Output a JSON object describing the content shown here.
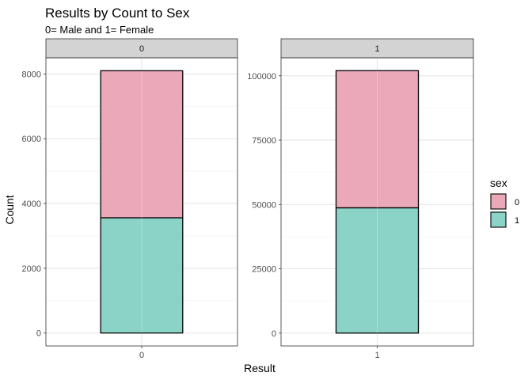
{
  "chart_data": {
    "type": "bar",
    "title": "Results by Count to Sex",
    "subtitle": "0= Male and 1= Female",
    "xlabel": "Result",
    "ylabel": "Count",
    "stacked": true,
    "grid": true,
    "legend": {
      "title": "sex",
      "placement": "right",
      "entries": [
        {
          "label": "0",
          "color": "#eba8b8"
        },
        {
          "label": "1",
          "color": "#8cd3c7"
        }
      ]
    },
    "colors": {
      "sex_0": "#eba8b8",
      "sex_1": "#8cd3c7",
      "strip_bg": "#d3d3d3"
    },
    "panels": [
      {
        "strip": "0",
        "category": "0",
        "ylim": [
          -400,
          8500
        ],
        "yticks": [
          0,
          2000,
          4000,
          6000,
          8000
        ],
        "yticklabels": [
          "0",
          "2000",
          "4000",
          "6000",
          "8000"
        ],
        "series": [
          {
            "sex": "1",
            "value": 3560
          },
          {
            "sex": "0",
            "value": 4540
          }
        ]
      },
      {
        "strip": "1",
        "category": "1",
        "ylim": [
          -5000,
          107000
        ],
        "yticks": [
          0,
          25000,
          50000,
          75000,
          100000
        ],
        "yticklabels": [
          "0",
          "25000",
          "50000",
          "75000",
          "100000"
        ],
        "series": [
          {
            "sex": "1",
            "value": 48700
          },
          {
            "sex": "0",
            "value": 53300
          }
        ]
      }
    ]
  }
}
